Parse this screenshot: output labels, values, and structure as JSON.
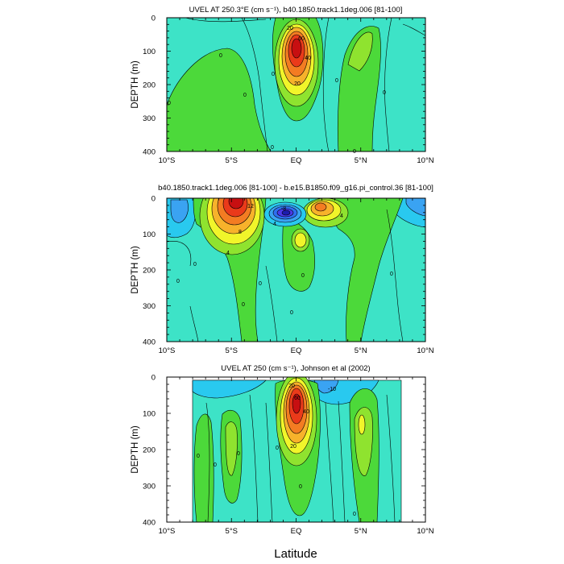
{
  "figure": {
    "xlabel": "Latitude"
  },
  "colors": {
    "levels": [
      "#1c1cae",
      "#4b3ae8",
      "#2f6fef",
      "#3aa3f2",
      "#29c9ef",
      "#3eeac8",
      "#3be582",
      "#4cd93a",
      "#8fe32f",
      "#f1f52a",
      "#f7b22b",
      "#f37c22",
      "#ea3a1a",
      "#c70f11"
    ],
    "background": "#3de3c7",
    "contour_line": "#000000"
  },
  "chart_data": [
    {
      "type": "contour",
      "title": "UVEL AT 250.3°E (cm s⁻¹), b40.1850.track1.1deg.006 [81-100]",
      "ylabel": "DEPTH (m)",
      "xlim": [
        -10,
        10
      ],
      "ylim": [
        400,
        0
      ],
      "x_ticks": [
        "10°S",
        "5°S",
        "EQ",
        "5°N",
        "10°N"
      ],
      "y_ticks": [
        "0",
        "100",
        "200",
        "300",
        "400"
      ],
      "contour_interval": 10,
      "features": [
        {
          "kind": "jet",
          "lat": 0.0,
          "depth": 90,
          "max": 80
        },
        {
          "kind": "eastward_band",
          "lat": 5.3,
          "depth": 120,
          "max": 10
        },
        {
          "kind": "eastward_band",
          "lat": -4.5,
          "depth": 150,
          "max": 10
        }
      ],
      "contour_labels": [
        "20",
        "60",
        "40",
        "20",
        "0",
        "0",
        "0",
        "0",
        "0",
        "0",
        "0",
        "0"
      ]
    },
    {
      "type": "contour",
      "title": "b40.1850.track1.1deg.006 [81-100] - b.e15.B1850.f09_g16.pi_control.36 [81-100]",
      "ylabel": "DEPTH (m)",
      "xlim": [
        -10,
        10
      ],
      "ylim": [
        400,
        0
      ],
      "x_ticks": [
        "10°S",
        "5°S",
        "EQ",
        "5°N",
        "10°N"
      ],
      "y_ticks": [
        "0",
        "100",
        "200",
        "300",
        "400"
      ],
      "contour_interval": 4,
      "features": [
        {
          "kind": "positive_anomaly",
          "lat": -5.0,
          "depth": 30,
          "max": 24
        },
        {
          "kind": "negative_anomaly",
          "lat": -0.8,
          "depth": 45,
          "min": -20
        },
        {
          "kind": "positive_anomaly",
          "lat": 2.5,
          "depth": 30,
          "max": 16
        },
        {
          "kind": "positive_anomaly",
          "lat": 0.3,
          "depth": 120,
          "max": 8
        }
      ],
      "contour_labels": [
        "12",
        "8",
        "4",
        "-8",
        "4",
        "4",
        "0",
        "0",
        "0",
        "0",
        "0",
        "0",
        "0"
      ]
    },
    {
      "type": "contour",
      "title": "UVEL AT 250 (cm s⁻¹), Johnson et al (2002)",
      "ylabel": "DEPTH (m)",
      "xlim": [
        -10,
        10
      ],
      "ylim": [
        400,
        0
      ],
      "data_lat_range": [
        -8,
        8.3
      ],
      "data_depth_range": [
        10,
        400
      ],
      "x_ticks": [
        "10°S",
        "5°S",
        "EQ",
        "5°N",
        "10°N"
      ],
      "y_ticks": [
        "0",
        "100",
        "200",
        "300",
        "400"
      ],
      "contour_interval": 10,
      "features": [
        {
          "kind": "jet",
          "lat": 0.0,
          "depth": 90,
          "max": 90
        },
        {
          "kind": "eastward_band",
          "lat": 5.0,
          "depth": 140,
          "max": 20
        },
        {
          "kind": "eastward_band",
          "lat": -5.0,
          "depth": 160,
          "max": 10
        }
      ],
      "contour_labels": [
        "20",
        "60",
        "40",
        "20",
        "-10",
        "0",
        "0",
        "0",
        "0",
        "0",
        "0"
      ]
    }
  ]
}
